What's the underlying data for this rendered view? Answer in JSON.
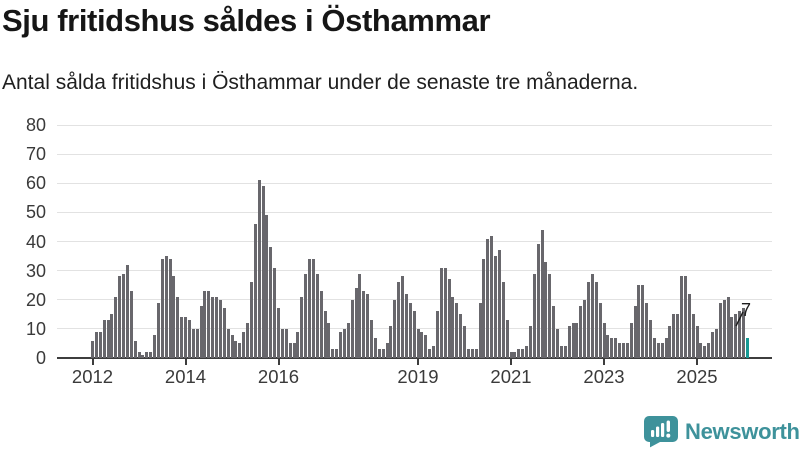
{
  "header": {
    "title": "Sju fritidshus såldes i Östhammar",
    "subtitle": "Antal sålda fritidshus i Östhammar under de senaste tre månaderna."
  },
  "chart_data": {
    "type": "bar",
    "title": "Sju fritidshus såldes i Östhammar",
    "xlabel": "",
    "ylabel": "",
    "ylim": [
      0,
      80
    ],
    "grid": true,
    "legend": "none",
    "y_ticks": [
      0,
      10,
      20,
      30,
      40,
      50,
      60,
      70,
      80
    ],
    "x_ticks": [
      {
        "label": "2012",
        "bar_index": 0
      },
      {
        "label": "2014",
        "bar_index": 24
      },
      {
        "label": "2016",
        "bar_index": 48
      },
      {
        "label": "2019",
        "bar_index": 84
      },
      {
        "label": "2021",
        "bar_index": 108
      },
      {
        "label": "2023",
        "bar_index": 132
      },
      {
        "label": "2025",
        "bar_index": 156
      }
    ],
    "values": [
      6,
      9,
      9,
      13,
      13,
      15,
      21,
      28,
      29,
      32,
      23,
      6,
      2,
      1,
      2,
      2,
      8,
      19,
      34,
      35,
      34,
      28,
      21,
      14,
      14,
      13,
      10,
      10,
      18,
      23,
      23,
      21,
      21,
      20,
      17,
      10,
      8,
      6,
      5,
      9,
      12,
      26,
      46,
      61,
      59,
      49,
      38,
      31,
      17,
      10,
      10,
      5,
      5,
      9,
      21,
      29,
      34,
      34,
      29,
      23,
      16,
      12,
      3,
      3,
      9,
      10,
      12,
      20,
      24,
      29,
      23,
      22,
      13,
      7,
      3,
      3,
      5,
      11,
      20,
      26,
      28,
      22,
      19,
      16,
      10,
      9,
      8,
      3,
      4,
      16,
      31,
      31,
      27,
      21,
      19,
      15,
      11,
      3,
      3,
      3,
      19,
      34,
      41,
      42,
      35,
      37,
      26,
      13,
      2,
      2,
      3,
      3,
      4,
      11,
      29,
      39,
      44,
      33,
      29,
      18,
      10,
      4,
      4,
      11,
      12,
      12,
      18,
      20,
      26,
      29,
      26,
      19,
      12,
      8,
      7,
      7,
      5,
      5,
      5,
      12,
      18,
      25,
      25,
      19,
      13,
      7,
      5,
      5,
      7,
      11,
      15,
      15,
      28,
      28,
      22,
      15,
      11,
      5,
      4,
      5,
      9,
      10,
      19,
      20,
      21,
      14,
      15,
      16,
      17,
      7
    ],
    "bar_color": "#68676c",
    "highlight": {
      "bar_index": 169,
      "value": 7,
      "label": "7",
      "color": "#189a94"
    }
  },
  "footer": {
    "brand": "Newsworthy",
    "logo_icon": "bar-chart-speech-bubble-icon",
    "brand_color": "#3e929b"
  },
  "colors": {
    "grid": "#e2e2e2",
    "axis": "#3d3d3d",
    "tick_text": "#3a3a3a",
    "bar": "#68676c",
    "highlight": "#189a94",
    "annotation_text": "#1d1d1d"
  }
}
